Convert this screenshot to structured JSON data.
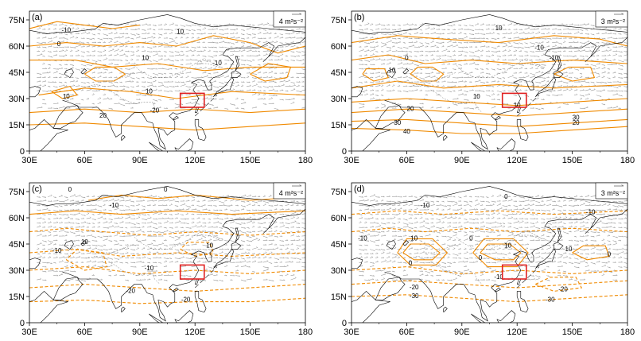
{
  "panels": [
    {
      "label": "(a)",
      "reference_vector": "4 m²s⁻²",
      "contour_labels": [
        "10",
        "0",
        "-10",
        "10",
        "-10",
        "10",
        "10",
        "20",
        "-20"
      ],
      "x_ticks": [
        "30E",
        "60E",
        "90E",
        "120E",
        "150E",
        "180"
      ],
      "y_ticks": [
        "75N",
        "60N",
        "45N",
        "30N",
        "15N",
        "0"
      ]
    },
    {
      "label": "(b)",
      "reference_vector": "3 m²s⁻²",
      "contour_labels": [
        "10",
        "-10",
        "0",
        "10",
        "-10",
        "10",
        "20",
        "30",
        "40",
        "10",
        "30",
        "20"
      ],
      "x_ticks": [
        "30E",
        "60E",
        "90E",
        "120E",
        "150E",
        "180"
      ],
      "y_ticks": [
        "75N",
        "60N",
        "45N",
        "30N",
        "15N",
        "0"
      ]
    },
    {
      "label": "(c)",
      "reference_vector": "4 m²s⁻²",
      "contour_labels": [
        "0",
        "0",
        "-10",
        "10",
        "-10",
        "10",
        "-10",
        "-20",
        "-20"
      ],
      "x_ticks": [
        "30E",
        "60E",
        "90E",
        "120E",
        "150E",
        "180"
      ],
      "y_ticks": [
        "75N",
        "60N",
        "45N",
        "30N",
        "15N",
        "0"
      ]
    },
    {
      "label": "(d)",
      "reference_vector": "3 m²s⁻²",
      "contour_labels": [
        "0",
        "-10",
        "10",
        "-10",
        "0",
        "10",
        "0",
        "0",
        "-10",
        "-20",
        "-30",
        "-20",
        "-30",
        "10",
        "0",
        "-10"
      ],
      "x_ticks": [
        "30E",
        "60E",
        "90E",
        "120E",
        "150E",
        "180"
      ],
      "y_ticks": [
        "75N",
        "60N",
        "45N",
        "30N",
        "15N",
        "0"
      ]
    }
  ],
  "highlight_box": {
    "lon": [
      112,
      125
    ],
    "lat": [
      25,
      33
    ],
    "color": "#e02020"
  },
  "colors": {
    "contour": "#f08a00",
    "vectors": "#9a9a9a",
    "coast": "#000000"
  }
}
